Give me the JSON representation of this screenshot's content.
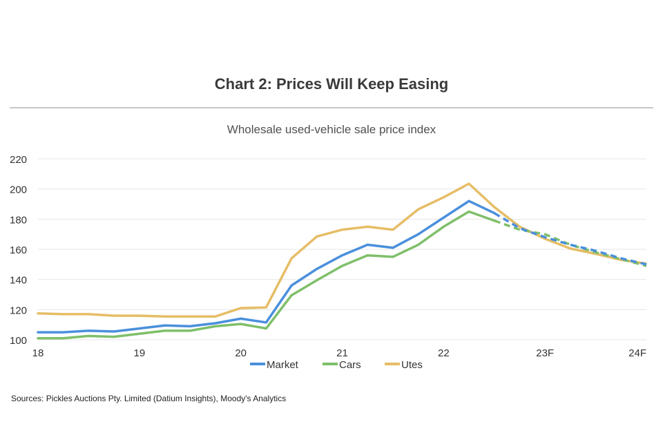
{
  "title": "Chart 2: Prices Will Keep Easing",
  "source": "Sources: Pickles Auctions Pty. Limited (Datium Insights), Moody's Analytics",
  "colors": {
    "Market": "#4a8fdc",
    "Cars": "#7fbf6a",
    "Utes": "#e6bd66",
    "grid": "#e6e6e6",
    "tick": "#333333"
  },
  "chart_data": {
    "type": "line",
    "title": "Wholesale used-vehicle sale price index",
    "xlabel": "",
    "ylabel": "",
    "ylim": [
      100,
      220
    ],
    "yticks": [
      100,
      120,
      140,
      160,
      180,
      200,
      220
    ],
    "xlim": [
      18,
      24
    ],
    "xticks": [
      {
        "x": 18,
        "label": "18"
      },
      {
        "x": 19,
        "label": "19"
      },
      {
        "x": 20,
        "label": "20"
      },
      {
        "x": 21,
        "label": "21"
      },
      {
        "x": 22,
        "label": "22"
      },
      {
        "x": 23,
        "label": "23F"
      },
      {
        "x": 24,
        "label": "24F"
      }
    ],
    "grid": true,
    "legend": "bottom",
    "forecast_start": 22.5,
    "x": [
      18,
      18.25,
      18.5,
      18.75,
      19,
      19.25,
      19.5,
      19.75,
      20,
      20.25,
      20.5,
      20.75,
      21,
      21.25,
      21.5,
      21.75,
      22,
      22.25,
      22.5,
      22.75,
      23,
      23.25,
      23.5,
      23.75,
      24
    ],
    "series": [
      {
        "name": "Market",
        "values": [
          105,
          105,
          106,
          105.5,
          107.5,
          109.5,
          109,
          111,
          114,
          111.5,
          136,
          147,
          156,
          163,
          161,
          170,
          181,
          192,
          184,
          174,
          168,
          163,
          159,
          154,
          150
        ]
      },
      {
        "name": "Cars",
        "values": [
          101,
          101,
          102.5,
          102,
          104,
          106,
          106,
          109,
          110.5,
          107.5,
          129.5,
          139.5,
          149,
          156,
          155,
          163,
          175,
          185,
          179,
          173,
          170,
          163,
          158,
          153.5,
          149
        ]
      },
      {
        "name": "Utes",
        "values": [
          117.5,
          117,
          117,
          116,
          116,
          115.5,
          115.5,
          115.5,
          121,
          121.5,
          154,
          168.5,
          173,
          175,
          173,
          186.5,
          194.5,
          203.5,
          188,
          175,
          167,
          160.5,
          157,
          153,
          150.5
        ]
      }
    ]
  }
}
